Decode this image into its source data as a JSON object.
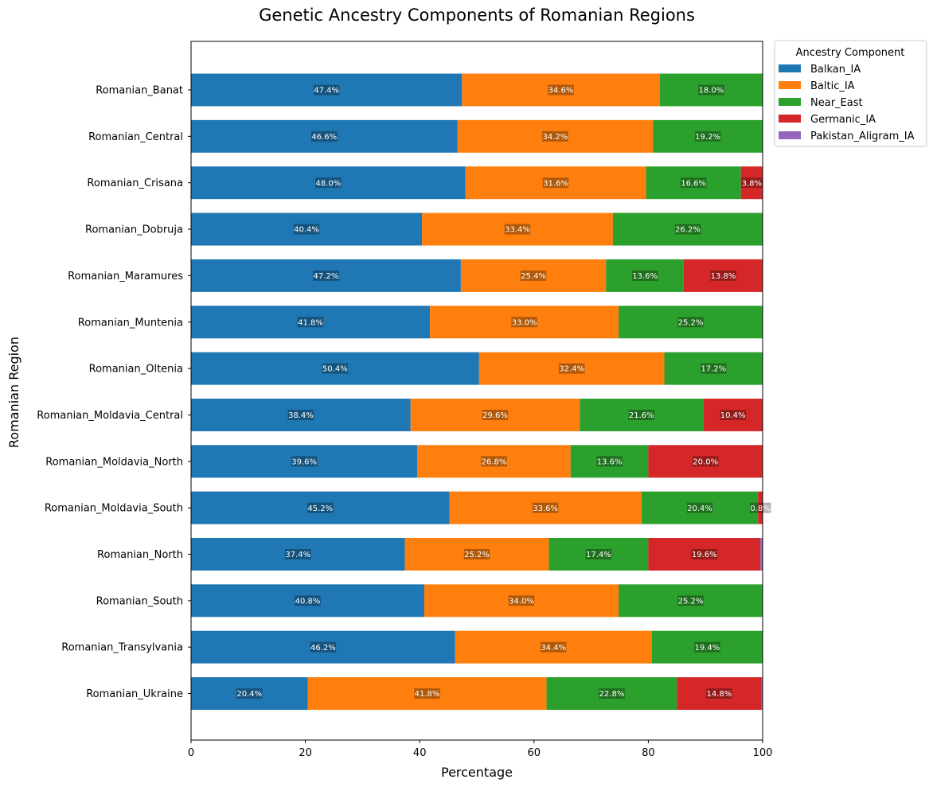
{
  "chart_data": {
    "type": "bar",
    "orientation": "horizontal",
    "stacked": true,
    "title": "Genetic Ancestry Components of Romanian Regions",
    "xlabel": "Percentage",
    "ylabel": "Romanian Region",
    "xlim": [
      0,
      100
    ],
    "xticks": [
      0,
      20,
      40,
      60,
      80,
      100
    ],
    "legend": {
      "title": "Ancestry Component",
      "placement": "upper-right-outside"
    },
    "categories": [
      "Romanian_Banat",
      "Romanian_Central",
      "Romanian_Crisana",
      "Romanian_Dobruja",
      "Romanian_Maramures",
      "Romanian_Muntenia",
      "Romanian_Oltenia",
      "Romanian_Moldavia_Central",
      "Romanian_Moldavia_North",
      "Romanian_Moldavia_South",
      "Romanian_North",
      "Romanian_South",
      "Romanian_Transylvania",
      "Romanian_Ukraine"
    ],
    "series": [
      {
        "name": "Balkan_IA",
        "color": "#1f77b4",
        "values": [
          47.4,
          46.6,
          48.0,
          40.4,
          47.2,
          41.8,
          50.4,
          38.4,
          39.6,
          45.2,
          37.4,
          40.8,
          46.2,
          20.4
        ]
      },
      {
        "name": "Baltic_IA",
        "color": "#ff7f0e",
        "values": [
          34.6,
          34.2,
          31.6,
          33.4,
          25.4,
          33.0,
          32.4,
          29.6,
          26.8,
          33.6,
          25.2,
          34.0,
          34.4,
          41.8
        ]
      },
      {
        "name": "Near_East",
        "color": "#2ca02c",
        "values": [
          18.0,
          19.2,
          16.6,
          26.2,
          13.6,
          25.2,
          17.2,
          21.6,
          13.6,
          20.4,
          17.4,
          25.2,
          19.4,
          22.8
        ]
      },
      {
        "name": "Germanic_IA",
        "color": "#d62728",
        "values": [
          0,
          0,
          3.8,
          0,
          13.8,
          0,
          0,
          10.4,
          20.0,
          0.8,
          19.6,
          0,
          0,
          14.8
        ]
      },
      {
        "name": "Pakistan_Aligram_IA",
        "color": "#9467bd",
        "values": [
          0,
          0,
          0,
          0,
          0,
          0,
          0,
          0,
          0,
          0,
          0.4,
          0,
          0,
          0.2
        ]
      }
    ]
  }
}
